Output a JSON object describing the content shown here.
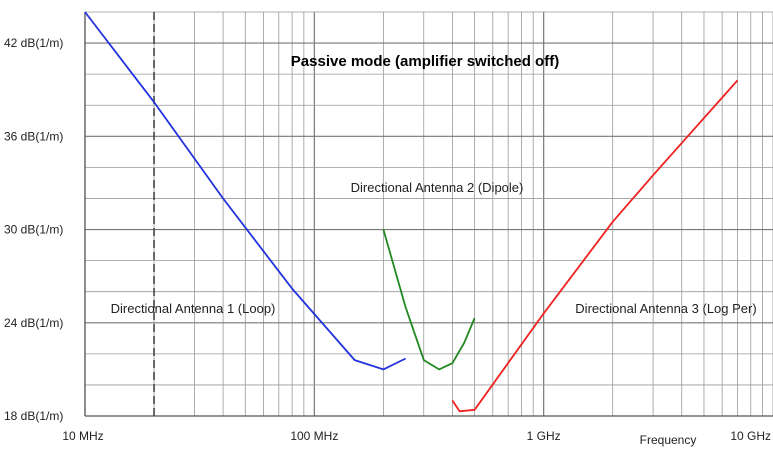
{
  "chart_data": {
    "type": "line",
    "title": "Passive mode (amplifier switched off)",
    "xlabel": "Frequency",
    "ylabel": "",
    "xscale": "log",
    "xlim": [
      10,
      10000
    ],
    "ylim": [
      18,
      44
    ],
    "grid": true,
    "legend": "none",
    "x_ticks": [
      {
        "value": 10,
        "label": "10 MHz"
      },
      {
        "value": 100,
        "label": "100 MHz"
      },
      {
        "value": 1000,
        "label": "1 GHz"
      },
      {
        "value": 10000,
        "label": "10 GHz"
      }
    ],
    "y_ticks": [
      {
        "value": 18,
        "label": "18 dB(1/m)"
      },
      {
        "value": 24,
        "label": "24 dB(1/m)"
      },
      {
        "value": 30,
        "label": "30 dB(1/m)"
      },
      {
        "value": 36,
        "label": "36 dB(1/m)"
      },
      {
        "value": 42,
        "label": "42 dB(1/m)"
      }
    ],
    "reference_line_x": 20,
    "series": [
      {
        "name": "Directional Antenna 1 (Loop)",
        "color": "#2233dd",
        "x": [
          10,
          20,
          40,
          80,
          150,
          200,
          250
        ],
        "y": [
          44.0,
          38.2,
          32.0,
          26.2,
          21.6,
          21.0,
          21.7
        ]
      },
      {
        "name": "Directional Antenna 2 (Dipole)",
        "color": "#228822",
        "x": [
          200,
          250,
          300,
          350,
          400,
          450,
          500
        ],
        "y": [
          30.0,
          25.0,
          21.6,
          21.0,
          21.4,
          22.7,
          24.3
        ]
      },
      {
        "name": "Directional Antenna 3 (Log Per)",
        "color": "#ee2222",
        "x": [
          400,
          430,
          500,
          1000,
          2000,
          3000,
          7000
        ],
        "y": [
          19.0,
          18.3,
          18.4,
          24.6,
          30.5,
          33.5,
          39.6
        ]
      }
    ],
    "annotations": [
      {
        "text": "Directional Antenna 1 (Loop)"
      },
      {
        "text": "Directional Antenna 2 (Dipole)"
      },
      {
        "text": "Directional Antenna 3 (Log Per)"
      }
    ]
  }
}
